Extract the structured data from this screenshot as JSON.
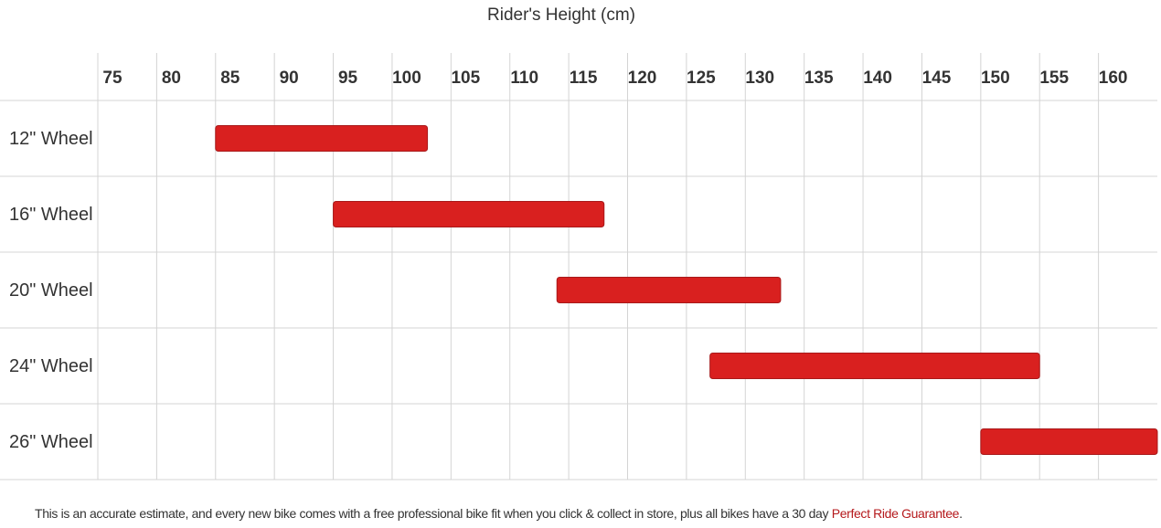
{
  "chart_data": {
    "type": "range-bar",
    "title": "Rider's Height (cm)",
    "categories": [
      "12\" Wheel",
      "16\" Wheel",
      "20\" Wheel",
      "24\" Wheel",
      "26\" Wheel"
    ],
    "values": [
      [
        85,
        103
      ],
      [
        95,
        118
      ],
      [
        114,
        133
      ],
      [
        127,
        155
      ],
      [
        150,
        165
      ]
    ],
    "color": "#d9201f",
    "xlim": [
      75,
      165
    ],
    "xticks": [
      75,
      80,
      85,
      90,
      95,
      100,
      105,
      110,
      115,
      120,
      125,
      130,
      135,
      140,
      145,
      150,
      155,
      160
    ],
    "grid": true
  },
  "footer": {
    "text": "This is an accurate estimate, and every new bike comes with a free professional bike fit when you click & collect in store, plus all bikes have a 30 day",
    "link": "Perfect Ride Guarantee",
    "end": "."
  }
}
